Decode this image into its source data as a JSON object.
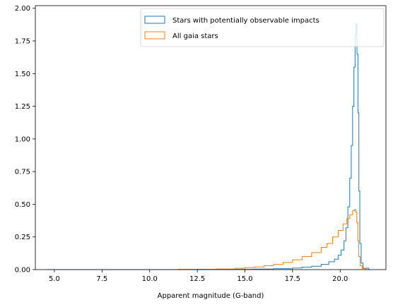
{
  "chart_data": {
    "type": "histogram",
    "title": "",
    "xlabel": "Apparent magnitude (G-band)",
    "ylabel": "",
    "xlim": [
      4.0,
      22.4
    ],
    "ylim": [
      0,
      2.02
    ],
    "xticks": [
      5.0,
      7.5,
      10.0,
      12.5,
      15.0,
      17.5,
      20.0
    ],
    "xtick_labels": [
      "5.0",
      "7.5",
      "10.0",
      "12.5",
      "15.0",
      "17.5",
      "20.0"
    ],
    "yticks": [
      0.0,
      0.25,
      0.5,
      0.75,
      1.0,
      1.25,
      1.5,
      1.75,
      2.0
    ],
    "ytick_labels": [
      "0.00",
      "0.25",
      "0.50",
      "0.75",
      "1.00",
      "1.25",
      "1.50",
      "1.75",
      "2.00"
    ],
    "grid": false,
    "legend_position": "top-right",
    "series": [
      {
        "name": "Stars with potentially observable impacts",
        "color": "#1f77b4",
        "style": "step",
        "points": [
          [
            4.6,
            0.0
          ],
          [
            11.0,
            0.0
          ],
          [
            13.0,
            0.001
          ],
          [
            14.5,
            0.002
          ],
          [
            15.5,
            0.004
          ],
          [
            16.5,
            0.007
          ],
          [
            17.5,
            0.012
          ],
          [
            18.0,
            0.018
          ],
          [
            18.5,
            0.026
          ],
          [
            19.0,
            0.04
          ],
          [
            19.4,
            0.06
          ],
          [
            19.7,
            0.08
          ],
          [
            19.9,
            0.11
          ],
          [
            20.05,
            0.15
          ],
          [
            20.2,
            0.22
          ],
          [
            20.3,
            0.32
          ],
          [
            20.4,
            0.48
          ],
          [
            20.5,
            0.7
          ],
          [
            20.58,
            0.95
          ],
          [
            20.65,
            1.25
          ],
          [
            20.72,
            1.55
          ],
          [
            20.78,
            1.8
          ],
          [
            20.83,
            1.88
          ],
          [
            20.88,
            1.65
          ],
          [
            20.93,
            1.2
          ],
          [
            20.98,
            0.6
          ],
          [
            21.03,
            0.2
          ],
          [
            21.1,
            0.05
          ],
          [
            21.2,
            0.01
          ],
          [
            21.5,
            0.0
          ]
        ]
      },
      {
        "name": "All gaia stars",
        "color": "#ff7f0e",
        "style": "step",
        "points": [
          [
            11.4,
            0.0
          ],
          [
            11.5,
            0.002
          ],
          [
            12.5,
            0.003
          ],
          [
            13.5,
            0.005
          ],
          [
            14.5,
            0.01
          ],
          [
            15.0,
            0.015
          ],
          [
            15.5,
            0.02
          ],
          [
            16.0,
            0.03
          ],
          [
            16.5,
            0.04
          ],
          [
            17.0,
            0.055
          ],
          [
            17.5,
            0.075
          ],
          [
            18.0,
            0.1
          ],
          [
            18.5,
            0.13
          ],
          [
            19.0,
            0.17
          ],
          [
            19.3,
            0.2
          ],
          [
            19.6,
            0.25
          ],
          [
            19.9,
            0.3
          ],
          [
            20.15,
            0.35
          ],
          [
            20.35,
            0.39
          ],
          [
            20.5,
            0.42
          ],
          [
            20.65,
            0.45
          ],
          [
            20.75,
            0.46
          ],
          [
            20.82,
            0.44
          ],
          [
            20.87,
            0.36
          ],
          [
            20.92,
            0.22
          ],
          [
            20.97,
            0.1
          ],
          [
            21.05,
            0.03
          ],
          [
            21.15,
            0.008
          ],
          [
            21.3,
            0.001
          ],
          [
            21.4,
            0.0
          ]
        ]
      }
    ]
  }
}
